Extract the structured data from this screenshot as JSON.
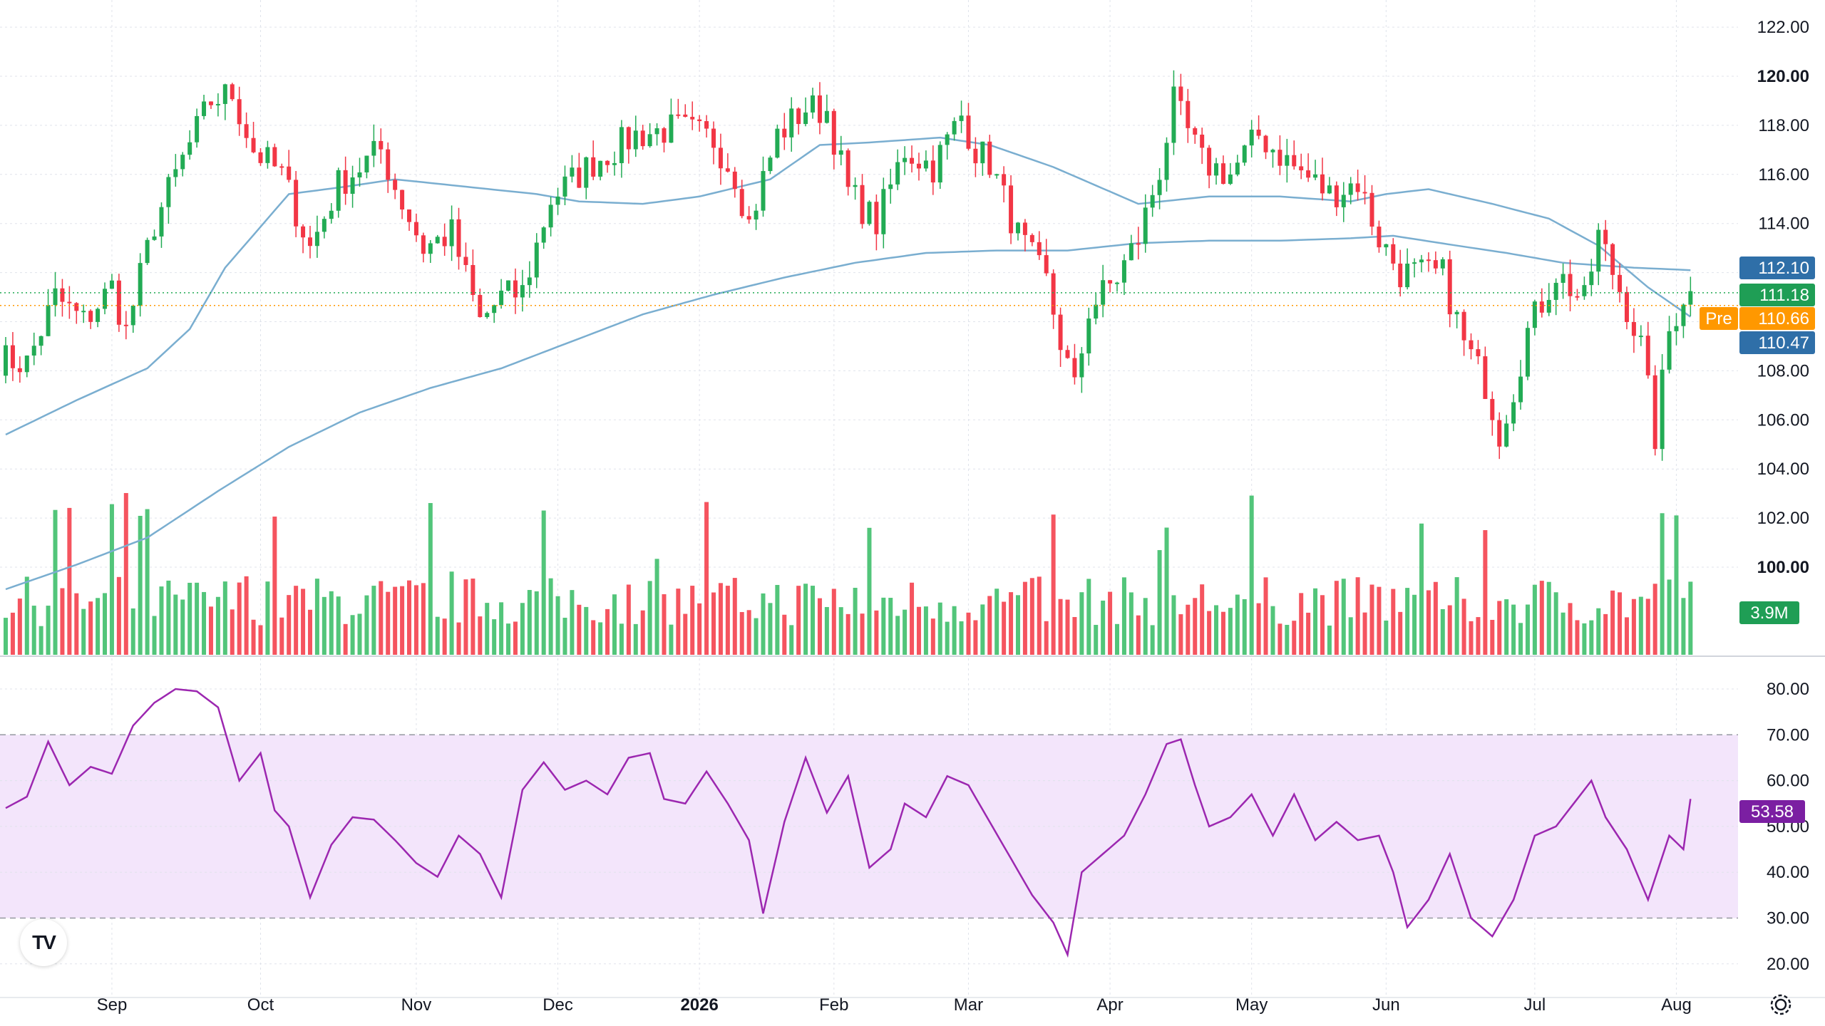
{
  "chart_data": {
    "type": "candlestick",
    "price_axis": {
      "ticks": [
        100,
        102,
        104,
        106,
        108,
        110,
        112,
        114,
        116,
        118,
        120,
        122
      ],
      "bold_ticks": [
        100,
        120
      ],
      "range": [
        97.1,
        122.4
      ]
    },
    "time_axis": {
      "labels": [
        {
          "text": "Sep",
          "bold": false
        },
        {
          "text": "Oct",
          "bold": false
        },
        {
          "text": "Nov",
          "bold": false
        },
        {
          "text": "Dec",
          "bold": false
        },
        {
          "text": "2026",
          "bold": true
        },
        {
          "text": "Feb",
          "bold": false
        },
        {
          "text": "Mar",
          "bold": false
        },
        {
          "text": "Apr",
          "bold": false
        },
        {
          "text": "May",
          "bold": false
        },
        {
          "text": "Jun",
          "bold": false
        },
        {
          "text": "Jul",
          "bold": false
        },
        {
          "text": "Aug",
          "bold": false
        }
      ],
      "label_bar_index": [
        15,
        36,
        58,
        78,
        98,
        117,
        136,
        156,
        176,
        195,
        216,
        236
      ]
    },
    "price_path": [
      [
        0,
        108.5
      ],
      [
        4,
        108.3
      ],
      [
        8,
        111
      ],
      [
        12,
        110
      ],
      [
        16,
        111.4
      ],
      [
        18,
        109.6
      ],
      [
        22,
        114
      ],
      [
        26,
        116.6
      ],
      [
        30,
        119
      ],
      [
        33,
        119.3
      ],
      [
        36,
        117
      ],
      [
        40,
        116
      ],
      [
        44,
        113
      ],
      [
        48,
        115.6
      ],
      [
        54,
        117
      ],
      [
        56,
        115.5
      ],
      [
        60,
        113
      ],
      [
        64,
        113.6
      ],
      [
        68,
        110
      ],
      [
        71,
        111
      ],
      [
        74,
        111.2
      ],
      [
        78,
        115
      ],
      [
        84,
        116.5
      ],
      [
        90,
        117.6
      ],
      [
        96,
        117.9
      ],
      [
        101,
        117.4
      ],
      [
        104,
        116
      ],
      [
        106,
        114
      ],
      [
        110,
        117.6
      ],
      [
        114,
        118.7
      ],
      [
        117,
        118.6
      ],
      [
        120,
        115.3
      ],
      [
        124,
        114
      ],
      [
        128,
        117
      ],
      [
        132,
        116.3
      ],
      [
        136,
        118.4
      ],
      [
        138,
        117
      ],
      [
        140,
        116.5
      ],
      [
        144,
        113.5
      ],
      [
        148,
        111.6
      ],
      [
        150,
        109.2
      ],
      [
        152,
        107.2
      ],
      [
        154,
        110.5
      ],
      [
        158,
        111.8
      ],
      [
        161,
        113.4
      ],
      [
        164,
        116.2
      ],
      [
        166,
        118.9
      ],
      [
        170,
        116.5
      ],
      [
        174,
        116
      ],
      [
        178,
        117.6
      ],
      [
        183,
        116.3
      ],
      [
        188,
        115.2
      ],
      [
        192,
        115.7
      ],
      [
        195,
        113.4
      ],
      [
        198,
        112
      ],
      [
        204,
        111.9
      ],
      [
        207,
        109.1
      ],
      [
        210,
        107.5
      ],
      [
        212,
        105.5
      ],
      [
        214,
        107.3
      ],
      [
        216,
        109.6
      ],
      [
        220,
        112
      ],
      [
        224,
        110.8
      ],
      [
        226,
        113.5
      ],
      [
        230,
        110.6
      ],
      [
        232,
        109
      ],
      [
        234,
        105.3
      ],
      [
        236,
        109.6
      ],
      [
        238,
        111.1
      ]
    ],
    "ma_short": [
      [
        0,
        105.4
      ],
      [
        10,
        106.8
      ],
      [
        20,
        108.1
      ],
      [
        26,
        109.7
      ],
      [
        31,
        112.2
      ],
      [
        40,
        115.2
      ],
      [
        48,
        115.5
      ],
      [
        55,
        115.8
      ],
      [
        65,
        115.5
      ],
      [
        75,
        115.2
      ],
      [
        81,
        114.9
      ],
      [
        90,
        114.8
      ],
      [
        98,
        115.1
      ],
      [
        108,
        115.8
      ],
      [
        115,
        117.2
      ],
      [
        122,
        117.3
      ],
      [
        132,
        117.5
      ],
      [
        139,
        117.2
      ],
      [
        148,
        116.3
      ],
      [
        160,
        114.8
      ],
      [
        170,
        115.1
      ],
      [
        180,
        115.1
      ],
      [
        190,
        114.9
      ],
      [
        195,
        115.2
      ],
      [
        201,
        115.4
      ],
      [
        210,
        114.8
      ],
      [
        218,
        114.2
      ],
      [
        225,
        113.1
      ],
      [
        232,
        111.4
      ],
      [
        238,
        110.2
      ]
    ],
    "ma_long": [
      [
        0,
        99.1
      ],
      [
        10,
        100.1
      ],
      [
        20,
        101.2
      ],
      [
        30,
        103.1
      ],
      [
        40,
        104.9
      ],
      [
        50,
        106.3
      ],
      [
        60,
        107.3
      ],
      [
        70,
        108.1
      ],
      [
        80,
        109.2
      ],
      [
        90,
        110.3
      ],
      [
        100,
        111.1
      ],
      [
        110,
        111.8
      ],
      [
        115,
        112.1
      ],
      [
        120,
        112.4
      ],
      [
        130,
        112.8
      ],
      [
        140,
        112.9
      ],
      [
        150,
        112.9
      ],
      [
        160,
        113.2
      ],
      [
        170,
        113.3
      ],
      [
        180,
        113.3
      ],
      [
        190,
        113.4
      ],
      [
        196,
        113.5
      ],
      [
        205,
        113.1
      ],
      [
        212,
        112.8
      ],
      [
        220,
        112.4
      ],
      [
        230,
        112.2
      ],
      [
        238,
        112.1
      ]
    ],
    "rsi_path": [
      [
        0,
        54
      ],
      [
        3,
        56.5
      ],
      [
        6,
        68.5
      ],
      [
        9,
        59
      ],
      [
        12,
        63
      ],
      [
        15,
        61.5
      ],
      [
        18,
        72
      ],
      [
        21,
        77
      ],
      [
        24,
        80
      ],
      [
        27,
        79.5
      ],
      [
        30,
        76
      ],
      [
        33,
        60
      ],
      [
        36,
        66
      ],
      [
        38,
        53.5
      ],
      [
        40,
        50
      ],
      [
        43,
        34.5
      ],
      [
        46,
        46
      ],
      [
        49,
        52
      ],
      [
        52,
        51.5
      ],
      [
        55,
        47
      ],
      [
        58,
        42
      ],
      [
        61,
        39
      ],
      [
        64,
        48
      ],
      [
        67,
        44
      ],
      [
        70,
        34.5
      ],
      [
        73,
        58
      ],
      [
        76,
        64
      ],
      [
        79,
        58
      ],
      [
        82,
        60
      ],
      [
        85,
        57
      ],
      [
        88,
        65
      ],
      [
        91,
        66
      ],
      [
        93,
        56
      ],
      [
        96,
        55
      ],
      [
        99,
        62
      ],
      [
        102,
        55
      ],
      [
        105,
        47
      ],
      [
        107,
        31
      ],
      [
        110,
        51
      ],
      [
        113,
        65
      ],
      [
        116,
        53
      ],
      [
        119,
        61
      ],
      [
        122,
        41
      ],
      [
        125,
        45
      ],
      [
        127,
        55
      ],
      [
        130,
        52
      ],
      [
        133,
        61
      ],
      [
        136,
        59
      ],
      [
        139,
        51
      ],
      [
        142,
        43
      ],
      [
        145,
        35
      ],
      [
        148,
        29
      ],
      [
        150,
        22
      ],
      [
        152,
        40
      ],
      [
        155,
        44
      ],
      [
        158,
        48
      ],
      [
        161,
        57
      ],
      [
        164,
        68
      ],
      [
        166,
        69
      ],
      [
        168,
        59
      ],
      [
        170,
        50
      ],
      [
        173,
        52
      ],
      [
        176,
        57
      ],
      [
        179,
        48
      ],
      [
        182,
        57
      ],
      [
        185,
        47
      ],
      [
        188,
        51
      ],
      [
        191,
        47
      ],
      [
        194,
        48
      ],
      [
        196,
        40
      ],
      [
        198,
        28
      ],
      [
        201,
        34
      ],
      [
        204,
        44
      ],
      [
        207,
        30
      ],
      [
        210,
        26
      ],
      [
        213,
        34
      ],
      [
        216,
        48
      ],
      [
        219,
        50
      ],
      [
        222,
        56
      ],
      [
        224,
        60
      ],
      [
        226,
        52
      ],
      [
        229,
        45
      ],
      [
        232,
        34
      ],
      [
        235,
        48
      ],
      [
        237,
        45
      ],
      [
        238,
        56
      ],
      [
        240,
        54
      ]
    ],
    "current_price_tags": [
      {
        "value": "112.10",
        "color": "#2f6fa8",
        "prefix": ""
      },
      {
        "value": "111.18",
        "color": "#1f9e55",
        "prefix": ""
      },
      {
        "value": "110.66",
        "color": "#ff9800",
        "prefix": "Pre"
      },
      {
        "value": "110.47",
        "color": "#2f6fa8",
        "prefix": ""
      }
    ],
    "volume_tag": {
      "value": "3.9M",
      "color": "#1f9e55"
    },
    "rsi": {
      "ticks": [
        20,
        30,
        40,
        50,
        60,
        70,
        80
      ],
      "overbought": 70,
      "oversold": 30,
      "range": [
        17,
        85
      ],
      "current_tag": {
        "value": "53.58",
        "color": "#7b1fa2"
      },
      "line_color": "#9c27b0",
      "band_fill": "#f3e5fb"
    },
    "colors": {
      "up": "#22ab54",
      "down": "#f23645",
      "ma": "#7aaed0",
      "grid": "#e0e3eb"
    },
    "bar_count": 240
  },
  "logo": {
    "text": "TV"
  }
}
